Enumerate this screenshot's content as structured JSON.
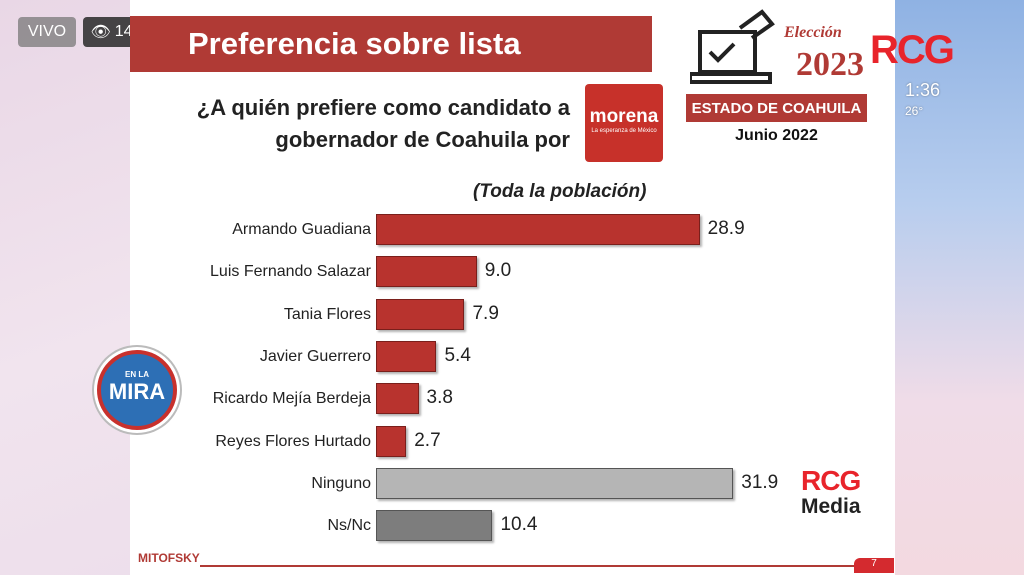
{
  "stream": {
    "live_label": "VIVO",
    "viewer_count": "14",
    "clock": "1:36",
    "temperature": "26°"
  },
  "slide": {
    "title": "Preferencia sobre lista",
    "question": "¿A quién prefiere como candidato a gobernador de Coahuila por",
    "party_logo": "morena",
    "party_tagline": "La esperanza de México",
    "election_logo": {
      "line1": "Elección",
      "line2": "2023",
      "brand": "RCG"
    },
    "state": "ESTADO DE COAHUILA",
    "date": "Junio 2022",
    "watermark": "RCG",
    "watermark_sub": "Media",
    "pollster": "MITOFSKY",
    "page": "7",
    "show_logo": {
      "top": "EN LA",
      "main": "MIRA"
    }
  },
  "chart_data": {
    "type": "bar",
    "orientation": "horizontal",
    "title": "(Toda la población)",
    "categories": [
      "Armando Guadiana",
      "Luis Fernando Salazar",
      "Tania Flores",
      "Javier Guerrero",
      "Ricardo Mejía Berdeja",
      "Reyes Flores Hurtado",
      "Ninguno",
      "Ns/Nc"
    ],
    "values": [
      28.9,
      9.0,
      7.9,
      5.4,
      3.8,
      2.7,
      31.9,
      10.4
    ],
    "labels": [
      "28.9",
      "9.0",
      "7.9",
      "5.4",
      "3.8",
      "2.7",
      "31.9",
      "10.4"
    ],
    "colors": [
      "#b8332e",
      "#b8332e",
      "#b8332e",
      "#b8332e",
      "#b8332e",
      "#b8332e",
      "#b5b5b5",
      "#7d7d7d"
    ],
    "grid": false
  }
}
